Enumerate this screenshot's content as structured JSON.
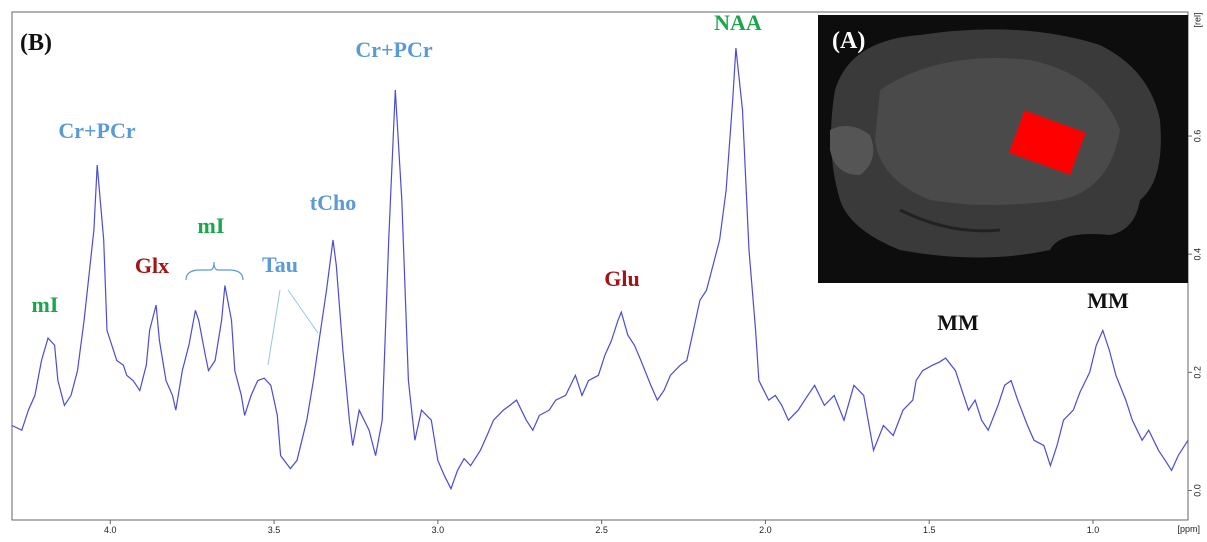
{
  "chart_data": {
    "type": "line",
    "panel_label": "(B)",
    "inset_label": "(A)",
    "xlabel": "[ppm]",
    "ylabel": "[rel]",
    "color": "#4b4bd6",
    "xlim": [
      4.3,
      0.71
    ],
    "ylim": [
      -0.05,
      0.81
    ],
    "xticks": [
      {
        "value": 4,
        "label": "4.0"
      },
      3.5,
      {
        "value": 3,
        "label": "3.0"
      },
      2.5,
      {
        "value": 2,
        "label": "2.0"
      },
      1.5,
      {
        "value": 1,
        "label": "1.0"
      }
    ],
    "yticks": [
      {
        "value": 0,
        "label": "0.0"
      },
      0.2,
      0.4,
      0.6
    ],
    "annotations": [
      {
        "text": "mI",
        "color": "#1aa64a"
      },
      {
        "text": "Cr+PCr",
        "color": "#5b9bd5"
      },
      {
        "text": "Glx",
        "color": "#a31515"
      },
      {
        "text": "mI",
        "color": "#1aa64a"
      },
      {
        "text": "Tau",
        "color": "#5b9bd5"
      },
      {
        "text": "tCho",
        "color": "#5b9bd5"
      },
      {
        "text": "Cr+PCr",
        "color": "#5b9bd5"
      },
      {
        "text": "NAA",
        "color": "#1aa64a"
      },
      {
        "text": "Glu",
        "color": "#a31515"
      },
      {
        "text": "MM",
        "color": "#111111"
      },
      {
        "text": "MM",
        "color": "#111111"
      }
    ],
    "x": [
      4.3,
      4.27,
      4.25,
      4.23,
      4.21,
      4.19,
      4.17,
      4.16,
      4.14,
      4.12,
      4.1,
      4.08,
      4.05,
      4.04,
      4.02,
      4.01,
      3.98,
      3.96,
      3.95,
      3.93,
      3.91,
      3.89,
      3.88,
      3.86,
      3.85,
      3.83,
      3.81,
      3.8,
      3.78,
      3.76,
      3.74,
      3.73,
      3.71,
      3.7,
      3.68,
      3.66,
      3.65,
      3.63,
      3.62,
      3.6,
      3.59,
      3.57,
      3.55,
      3.53,
      3.51,
      3.49,
      3.48,
      3.45,
      3.43,
      3.4,
      3.38,
      3.36,
      3.34,
      3.32,
      3.31,
      3.29,
      3.27,
      3.26,
      3.24,
      3.21,
      3.19,
      3.17,
      3.15,
      3.13,
      3.11,
      3.09,
      3.07,
      3.05,
      3.02,
      3.0,
      2.98,
      2.96,
      2.94,
      2.92,
      2.9,
      2.87,
      2.85,
      2.83,
      2.8,
      2.78,
      2.76,
      2.73,
      2.71,
      2.69,
      2.66,
      2.64,
      2.61,
      2.58,
      2.56,
      2.54,
      2.51,
      2.49,
      2.47,
      2.45,
      2.44,
      2.42,
      2.4,
      2.38,
      2.35,
      2.33,
      2.31,
      2.29,
      2.26,
      2.24,
      2.22,
      2.2,
      2.18,
      2.16,
      2.14,
      2.12,
      2.1,
      2.09,
      2.07,
      2.05,
      2.03,
      2.02,
      1.99,
      1.97,
      1.95,
      1.93,
      1.9,
      1.88,
      1.85,
      1.82,
      1.79,
      1.76,
      1.73,
      1.7,
      1.67,
      1.64,
      1.61,
      1.58,
      1.55,
      1.54,
      1.52,
      1.49,
      1.47,
      1.45,
      1.42,
      1.4,
      1.38,
      1.36,
      1.34,
      1.32,
      1.29,
      1.27,
      1.25,
      1.23,
      1.2,
      1.18,
      1.15,
      1.13,
      1.11,
      1.09,
      1.06,
      1.04,
      1.01,
      0.99,
      0.97,
      0.95,
      0.93,
      0.9,
      0.88,
      0.85,
      0.83,
      0.8,
      0.78,
      0.76,
      0.74,
      0.71
    ],
    "values": [
      0.11,
      0.102,
      0.136,
      0.161,
      0.22,
      0.258,
      0.246,
      0.186,
      0.144,
      0.161,
      0.203,
      0.288,
      0.441,
      0.551,
      0.424,
      0.271,
      0.22,
      0.212,
      0.195,
      0.186,
      0.169,
      0.212,
      0.271,
      0.314,
      0.254,
      0.186,
      0.161,
      0.136,
      0.203,
      0.246,
      0.305,
      0.288,
      0.229,
      0.203,
      0.22,
      0.288,
      0.347,
      0.288,
      0.203,
      0.161,
      0.127,
      0.161,
      0.186,
      0.19,
      0.178,
      0.127,
      0.059,
      0.037,
      0.051,
      0.119,
      0.186,
      0.263,
      0.339,
      0.424,
      0.381,
      0.237,
      0.119,
      0.076,
      0.136,
      0.102,
      0.059,
      0.119,
      0.424,
      0.678,
      0.492,
      0.186,
      0.085,
      0.136,
      0.119,
      0.051,
      0.025,
      0.003,
      0.034,
      0.054,
      0.042,
      0.068,
      0.093,
      0.119,
      0.136,
      0.144,
      0.153,
      0.119,
      0.102,
      0.127,
      0.136,
      0.153,
      0.161,
      0.195,
      0.161,
      0.186,
      0.195,
      0.229,
      0.254,
      0.288,
      0.302,
      0.263,
      0.246,
      0.22,
      0.178,
      0.153,
      0.169,
      0.195,
      0.212,
      0.22,
      0.271,
      0.322,
      0.339,
      0.381,
      0.424,
      0.508,
      0.661,
      0.749,
      0.644,
      0.407,
      0.271,
      0.186,
      0.153,
      0.161,
      0.144,
      0.119,
      0.136,
      0.153,
      0.178,
      0.144,
      0.161,
      0.119,
      0.178,
      0.161,
      0.068,
      0.11,
      0.093,
      0.136,
      0.153,
      0.186,
      0.203,
      0.212,
      0.217,
      0.224,
      0.203,
      0.169,
      0.136,
      0.153,
      0.119,
      0.102,
      0.144,
      0.178,
      0.186,
      0.153,
      0.11,
      0.085,
      0.076,
      0.042,
      0.076,
      0.119,
      0.136,
      0.166,
      0.2,
      0.246,
      0.271,
      0.237,
      0.195,
      0.153,
      0.119,
      0.085,
      0.102,
      0.068,
      0.051,
      0.034,
      0.059,
      0.085
    ]
  }
}
